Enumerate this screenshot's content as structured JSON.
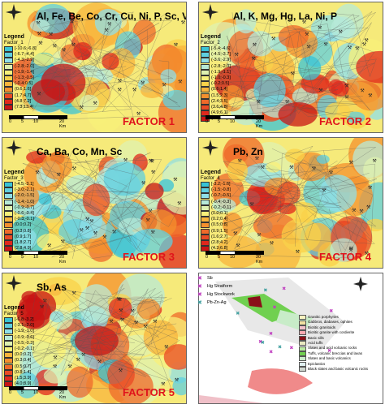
{
  "panels": [
    {
      "title": "Al, Fe, Be, Co, Cr, Cu, Ni, P, Sc, V, Zn",
      "legend_name": "Factor_1",
      "classes": [
        "[-10.6;-6.8]",
        "(-6.7;-4.4]",
        "(-4.3;-2.9]",
        "(-2.8;-2.0]",
        "(-1.9;-1.4]",
        "(-1.3;-0.5]",
        "(-0.4;0.5]",
        "(0.6;1.6]",
        "(1.7;4.7]",
        "(4.8;7.2]",
        "(7.3;13.4]"
      ],
      "factor": "FACTOR 1"
    },
    {
      "title": "Al, K, Mg, Hg, La, Ni, P",
      "legend_name": "Factor_2",
      "classes": [
        "[-5.4;-4.6]",
        "(-4.5;-3.7]",
        "(-3.6;-2.9]",
        "(-2.8;-2.0]",
        "(-1.9;-1.1]",
        "(-1.0;-0.3]",
        "(-0.2;0.5]",
        "(0.6;1.4]",
        "(1.5;2.3]",
        "(2.4;3.5]",
        "(3.6;4.8]",
        "(4.9;6.1]",
        "(6.2;7.9]"
      ],
      "factor": "FACTOR 2"
    },
    {
      "title": "Ca, Ba, Co, Mn, Sc",
      "legend_name": "Factor_3",
      "classes": [
        "[-4.5;-3.1]",
        "(-3.0;-2.1]",
        "(-2.0;-1.5]",
        "(-1.4;-1.0]",
        "(-0.9;-0.7]",
        "(-0.6;-0.4]",
        "(-0.3;-0.1]",
        "(0.0;0.2]",
        "(0.3;0.8]",
        "(0.9;1.7]",
        "(1.8;2.7]",
        "(2.8;4.9]"
      ],
      "factor": "FACTOR 3"
    },
    {
      "title": "Pb, Zn",
      "legend_name": "Factor_4",
      "classes": [
        "[-3.2;-1.6]",
        "(-1.5;-0.8]",
        "(-0.7;-0.5]",
        "(-0.4;-0.3]",
        "(-0.2;-0.1]",
        "(0.0;0.1]",
        "(0.2;0.4]",
        "(0.5;0.8]",
        "(0.9;1.5]",
        "(1.6;2.7]",
        "(2.8;4.2]",
        "(4.3;6.8]"
      ],
      "factor": "FACTOR 4"
    },
    {
      "title": "Sb, As",
      "legend_name": "Factor_5",
      "classes": [
        "[-6.8;-3.2]",
        "(-3.1;-2.0]",
        "(-1.9;-1.0]",
        "(-0.9;-0.6]",
        "(-0.5;-0.3]",
        "(-0.2;-0.1]",
        "(0.0;0.2]",
        "(0.3;0.4]",
        "(0.5;0.7]",
        "(0.8;1.4]",
        "(1.5;3.9]",
        "(4.0;8.9]"
      ],
      "factor": "FACTOR 5"
    }
  ],
  "legend_heading": "Legend",
  "scale_labels": [
    "0",
    "5",
    "10",
    "20 Km"
  ],
  "deposit_legend": [
    {
      "label": "Sb",
      "color": "#c040c0"
    },
    {
      "label": "Hg Stratform",
      "color": "#c040c0"
    },
    {
      "label": "Hg Stockwork",
      "color": "#c040c0"
    },
    {
      "label": "Pb-Zn-Ag",
      "color": "#40a0a0"
    }
  ],
  "geology_legend": [
    {
      "label": "Granitic porphyries",
      "color": "#f6f2c0"
    },
    {
      "label": "Gabbros, diabases, ophites",
      "color": "#f0e0a0"
    },
    {
      "label": "Biotitic granitoids",
      "color": "#f0c0c8"
    },
    {
      "label": "Biotitic granite with cordierite",
      "color": "#f8a8b0"
    },
    {
      "label": "Basic sills",
      "color": "#8a1018"
    },
    {
      "label": "Acid tuffs",
      "color": "#e8e8c0"
    },
    {
      "label": "Slates and acid volcanic rocks",
      "color": "#b8e8a0"
    },
    {
      "label": "Tuffs, volcanic breccias and lavas",
      "color": "#70d050"
    },
    {
      "label": "Slates and basic volcanics",
      "color": "#c8ecc8"
    },
    {
      "label": "Epiclastics",
      "color": "#e0f0f0"
    },
    {
      "label": "Black slates and basic volcanic rocks",
      "color": "#d0d8d0"
    }
  ],
  "class_colors": [
    "#39c3d6",
    "#5fcfe0",
    "#8fdfe8",
    "#b7e9d8",
    "#dff1b0",
    "#f8f07a",
    "#f9d24a",
    "#f8b43c",
    "#f4902e",
    "#ef6a2a",
    "#e94a24",
    "#e0281c",
    "#c81414"
  ]
}
